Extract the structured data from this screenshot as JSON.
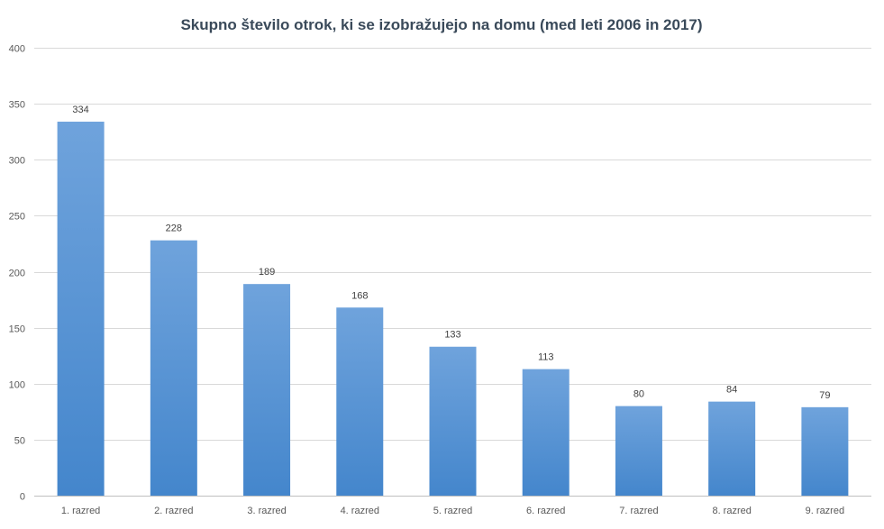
{
  "chart_data": {
    "type": "bar",
    "title": "Skupno število otrok, ki se izobražujejo  na domu (med leti 2006 in 2017)",
    "categories": [
      "1. razred",
      "2. razred",
      "3. razred",
      "4. razred",
      "5. razred",
      "6. razred",
      "7. razred",
      "8. razred",
      "9. razred"
    ],
    "values": [
      334,
      228,
      189,
      168,
      133,
      113,
      80,
      84,
      79
    ],
    "xlabel": "",
    "ylabel": "",
    "ylim": [
      0,
      400
    ],
    "yticks": [
      0,
      50,
      100,
      150,
      200,
      250,
      300,
      350,
      400
    ],
    "grid": true,
    "legend": "none",
    "data_labels": true,
    "bar_color_top": "#6fa3dc",
    "bar_color_bottom": "#4486cc"
  }
}
